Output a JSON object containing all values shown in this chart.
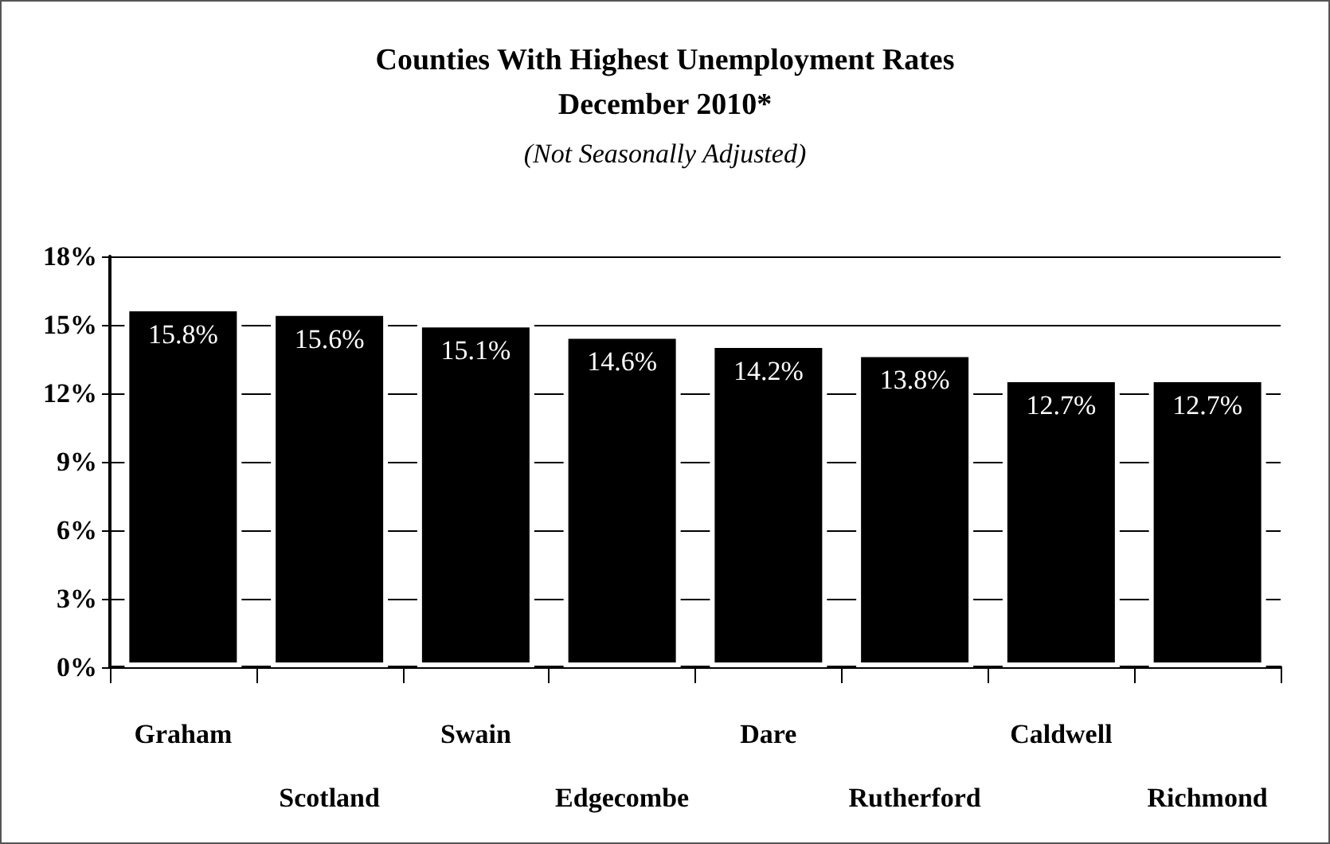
{
  "chart_data": {
    "type": "bar",
    "title": "Counties With Highest Unemployment Rates\nDecember 2010*",
    "subtitle": "(Not Seasonally Adjusted)",
    "categories": [
      "Graham",
      "Scotland",
      "Swain",
      "Edgecombe",
      "Dare",
      "Rutherford",
      "Caldwell",
      "Richmond"
    ],
    "values": [
      15.8,
      15.6,
      15.1,
      14.6,
      14.2,
      13.8,
      12.7,
      12.7
    ],
    "value_labels": [
      "15.8%",
      "15.6%",
      "15.1%",
      "14.6%",
      "14.2%",
      "13.8%",
      "12.7%",
      "12.7%"
    ],
    "color": "#000000",
    "ylim": [
      0,
      18
    ],
    "yticks": [
      {
        "value": 0,
        "label": "0%"
      },
      {
        "value": 3,
        "label": "3%"
      },
      {
        "value": 6,
        "label": "6%"
      },
      {
        "value": 9,
        "label": "9%"
      },
      {
        "value": 12,
        "label": "12%"
      },
      {
        "value": 15,
        "label": "15%"
      },
      {
        "value": 18,
        "label": "18%"
      }
    ],
    "grid": "y"
  }
}
